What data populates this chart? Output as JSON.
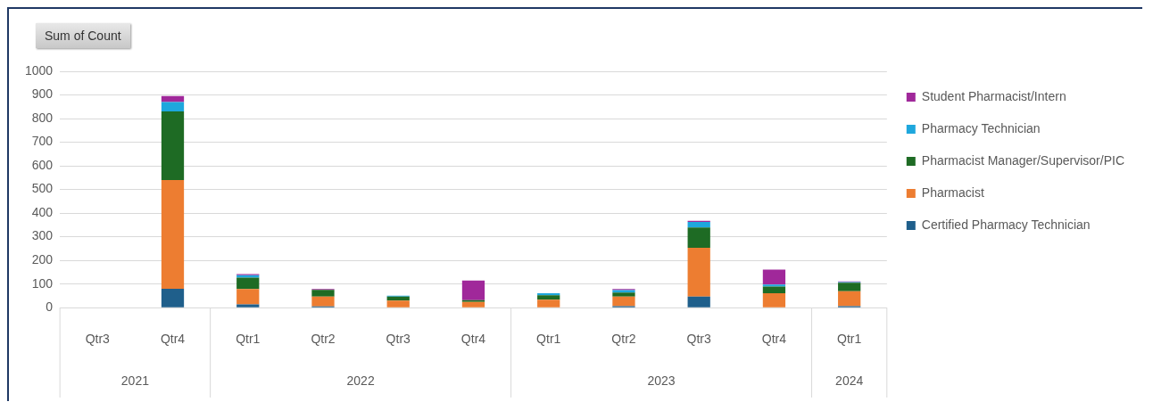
{
  "chart_data": {
    "type": "bar",
    "stacked": true,
    "ylabel": "Sum of Count",
    "categories": [
      "Qtr3",
      "Qtr4",
      "Qtr1",
      "Qtr2",
      "Qtr3",
      "Qtr4",
      "Qtr1",
      "Qtr2",
      "Qtr3",
      "Qtr4",
      "Qtr1"
    ],
    "annotations": [
      "2021",
      "2022",
      "2023",
      "2024"
    ],
    "series": [
      {
        "name": "Certified Pharmacy Technician",
        "color": "#1f5f8b",
        "values": [
          0,
          80,
          14,
          5,
          0,
          0,
          0,
          6,
          47,
          0,
          6
        ]
      },
      {
        "name": "Pharmacist",
        "color": "#ed7d31",
        "values": [
          0,
          460,
          65,
          42,
          30,
          24,
          34,
          41,
          206,
          61,
          64
        ]
      },
      {
        "name": "Pharmacist Manager/Supervisor/PIC",
        "color": "#1e6b24",
        "values": [
          0,
          290,
          48,
          28,
          17,
          8,
          19,
          17,
          86,
          28,
          35
        ]
      },
      {
        "name": "Pharmacy Technician",
        "color": "#1ea7dd",
        "values": [
          0,
          40,
          10,
          0,
          4,
          0,
          8,
          10,
          24,
          9,
          3
        ]
      },
      {
        "name": "Student Pharmacist/Intern",
        "color": "#a0289a",
        "values": [
          0,
          25,
          5,
          4,
          0,
          83,
          0,
          5,
          4,
          63,
          3
        ]
      }
    ],
    "ylim": [
      0,
      1000
    ],
    "yticks": [
      0,
      100,
      200,
      300,
      400,
      500,
      600,
      700,
      800,
      900,
      1000
    ],
    "grid": "y",
    "legend": "top right"
  }
}
